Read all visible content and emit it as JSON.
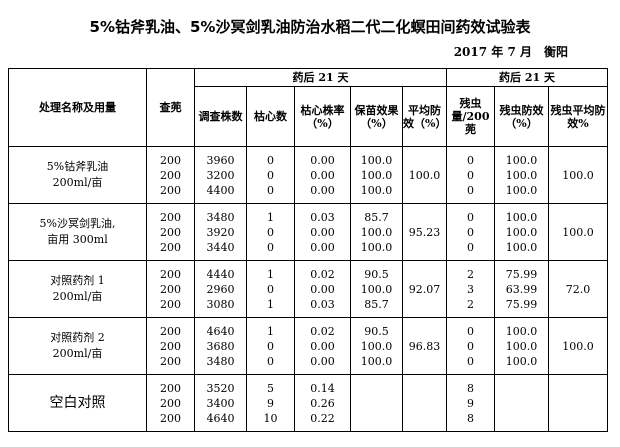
{
  "title": "5%钴斧乳油、5%沙冥剑乳油防治水稻二代二化螟田间药效试验表",
  "subtitle": "2017 年 7 月　衡阳",
  "header": {
    "treatment": "处理名称及用量",
    "check_plants": "查蔸",
    "group1": "药后 21 天",
    "group2": "药后 21 天",
    "survey_plants": "调查株数",
    "dead_hearts": "枯心数",
    "dead_heart_rate": "枯心株率（%）",
    "seedling_efficacy": "保苗效果（%）",
    "avg_efficacy1": "平均防效（%）",
    "residual_insects": "残虫量/200 蔸",
    "insect_efficacy": "残虫防效（%）",
    "avg_efficacy2": "残虫平均防效%"
  },
  "groups": [
    {
      "name_line1": "5%钴斧乳油",
      "name_line2": "200ml/亩",
      "checks": [
        "200",
        "200",
        "200"
      ],
      "survey": [
        "3960",
        "3200",
        "4400"
      ],
      "dead": [
        "0",
        "0",
        "0"
      ],
      "rate": [
        "0.00",
        "0.00",
        "0.00"
      ],
      "efficacy": [
        "100.0",
        "100.0",
        "100.0"
      ],
      "avg": "100.0",
      "residual": [
        "0",
        "0",
        "0"
      ],
      "insect_eff": [
        "100.0",
        "100.0",
        "100.0"
      ],
      "avg2": "100.0"
    },
    {
      "name_line1": "5%沙冥剑乳油,",
      "name_line2": "亩用 300ml",
      "checks": [
        "200",
        "200",
        "200"
      ],
      "survey": [
        "3480",
        "3920",
        "3440"
      ],
      "dead": [
        "1",
        "0",
        "0"
      ],
      "rate": [
        "0.03",
        "0.00",
        "0.00"
      ],
      "efficacy": [
        "85.7",
        "100.0",
        "100.0"
      ],
      "avg": "95.23",
      "residual": [
        "0",
        "0",
        "0"
      ],
      "insect_eff": [
        "100.0",
        "100.0",
        "100.0"
      ],
      "avg2": "100.0"
    },
    {
      "name_line1": "对照药剂 1",
      "name_line2": "200ml/亩",
      "checks": [
        "200",
        "200",
        "200"
      ],
      "survey": [
        "4440",
        "2960",
        "3080"
      ],
      "dead": [
        "1",
        "0",
        "1"
      ],
      "rate": [
        "0.02",
        "0.00",
        "0.03"
      ],
      "efficacy": [
        "90.5",
        "100.0",
        "85.7"
      ],
      "avg": "92.07",
      "residual": [
        "2",
        "3",
        "2"
      ],
      "insect_eff": [
        "75.99",
        "63.99",
        "75.99"
      ],
      "avg2": "72.0"
    },
    {
      "name_line1": "对照药剂 2",
      "name_line2": "200ml/亩",
      "checks": [
        "200",
        "200",
        "200"
      ],
      "survey": [
        "4640",
        "3680",
        "3480"
      ],
      "dead": [
        "1",
        "0",
        "0"
      ],
      "rate": [
        "0.02",
        "0.00",
        "0.00"
      ],
      "efficacy": [
        "90.5",
        "100.0",
        "100.0"
      ],
      "avg": "96.83",
      "residual": [
        "0",
        "0",
        "0"
      ],
      "insect_eff": [
        "100.0",
        "100.0",
        "100.0"
      ],
      "avg2": "100.0"
    },
    {
      "name_line1": "空白对照",
      "name_line2": "",
      "checks": [
        "200",
        "200",
        "200"
      ],
      "survey": [
        "3520",
        "3400",
        "4640"
      ],
      "dead": [
        "5",
        "9",
        "10"
      ],
      "rate": [
        "0.14",
        "0.26",
        "0.22"
      ],
      "efficacy": [
        "",
        "",
        ""
      ],
      "avg": "",
      "residual": [
        "8",
        "9",
        "8"
      ],
      "insect_eff": [
        "",
        "",
        ""
      ],
      "avg2": ""
    }
  ]
}
